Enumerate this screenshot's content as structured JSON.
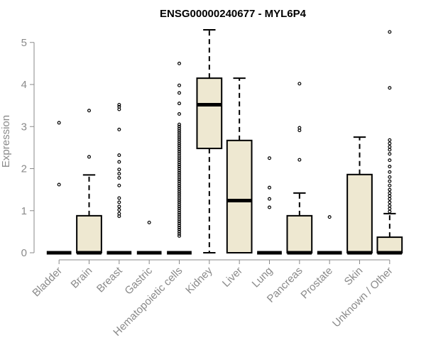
{
  "chart_data": {
    "type": "boxplot",
    "title": "ENSG00000240677 - MYL6P4",
    "xlabel": "",
    "ylabel": "Expression",
    "ylim": [
      0,
      5.3
    ],
    "yticks": [
      0,
      1,
      2,
      3,
      4,
      5
    ],
    "grid": false,
    "box_color": "#EEE8D1",
    "outline_color": "#000000",
    "axis_color": "#8a8a8a",
    "categories": [
      "Bladder",
      "Brain",
      "Breast",
      "Gastric",
      "Hematopoietic cells",
      "Kidney",
      "Liver",
      "Lung",
      "Pancreas",
      "Prostate",
      "Skin",
      "Unknown / Other"
    ],
    "boxes": [
      {
        "category": "Bladder",
        "q1": 0,
        "median": 0,
        "q3": 0,
        "whisker_low": 0,
        "whisker_high": 0,
        "outliers": [
          1.62,
          3.09
        ]
      },
      {
        "category": "Brain",
        "q1": 0,
        "median": 0,
        "q3": 0.88,
        "whisker_low": 0,
        "whisker_high": 1.85,
        "outliers": [
          2.28,
          3.38
        ]
      },
      {
        "category": "Breast",
        "q1": 0,
        "median": 0,
        "q3": 0,
        "whisker_low": 0,
        "whisker_high": 0,
        "outliers": [
          0.87,
          0.93,
          1.02,
          1.1,
          1.2,
          1.3,
          1.6,
          1.78,
          1.88,
          1.98,
          2.16,
          2.32,
          2.93,
          3.41,
          3.47,
          3.52
        ]
      },
      {
        "category": "Gastric",
        "q1": 0,
        "median": 0,
        "q3": 0,
        "whisker_low": 0,
        "whisker_high": 0,
        "outliers": [
          0.72
        ]
      },
      {
        "category": "Hematopoietic cells",
        "q1": 0,
        "median": 0,
        "q3": 0,
        "whisker_low": 0,
        "whisker_high": 0,
        "outliers": [
          0.4,
          0.45,
          0.5,
          0.55,
          0.6,
          0.65,
          0.7,
          0.75,
          0.8,
          0.85,
          0.9,
          0.95,
          1.0,
          1.05,
          1.1,
          1.15,
          1.2,
          1.25,
          1.3,
          1.35,
          1.4,
          1.45,
          1.5,
          1.55,
          1.6,
          1.65,
          1.7,
          1.75,
          1.8,
          1.85,
          1.9,
          1.95,
          2.0,
          2.05,
          2.1,
          2.15,
          2.2,
          2.25,
          2.3,
          2.35,
          2.4,
          2.45,
          2.5,
          2.55,
          2.6,
          2.65,
          2.7,
          2.75,
          2.8,
          2.85,
          2.9,
          2.95,
          3.0,
          3.05,
          3.3,
          3.55,
          3.8,
          3.98,
          4.5
        ]
      },
      {
        "category": "Kidney",
        "q1": 2.48,
        "median": 3.52,
        "q3": 4.15,
        "whisker_low": 0,
        "whisker_high": 5.3,
        "outliers": []
      },
      {
        "category": "Liver",
        "q1": 0,
        "median": 1.24,
        "q3": 2.67,
        "whisker_low": 0,
        "whisker_high": 4.15,
        "outliers": []
      },
      {
        "category": "Lung",
        "q1": 0,
        "median": 0,
        "q3": 0,
        "whisker_low": 0,
        "whisker_high": 0,
        "outliers": [
          1.08,
          1.28,
          1.55,
          2.25
        ]
      },
      {
        "category": "Pancreas",
        "q1": 0,
        "median": 0,
        "q3": 0.88,
        "whisker_low": 0,
        "whisker_high": 1.42,
        "outliers": [
          2.21,
          2.91,
          2.97,
          4.02
        ]
      },
      {
        "category": "Prostate",
        "q1": 0,
        "median": 0,
        "q3": 0,
        "whisker_low": 0,
        "whisker_high": 0,
        "outliers": [
          0.85
        ]
      },
      {
        "category": "Skin",
        "q1": 0,
        "median": 0,
        "q3": 1.86,
        "whisker_low": 0,
        "whisker_high": 2.75,
        "outliers": []
      },
      {
        "category": "Unknown / Other",
        "q1": 0,
        "median": 0,
        "q3": 0.37,
        "whisker_low": 0,
        "whisker_high": 0.93,
        "outliers": [
          0.98,
          1.05,
          1.12,
          1.2,
          1.28,
          1.35,
          1.42,
          1.5,
          1.6,
          1.7,
          1.8,
          1.92,
          2.05,
          2.2,
          2.35,
          2.45,
          2.52,
          2.6,
          2.68,
          3.92,
          5.25
        ]
      }
    ]
  }
}
